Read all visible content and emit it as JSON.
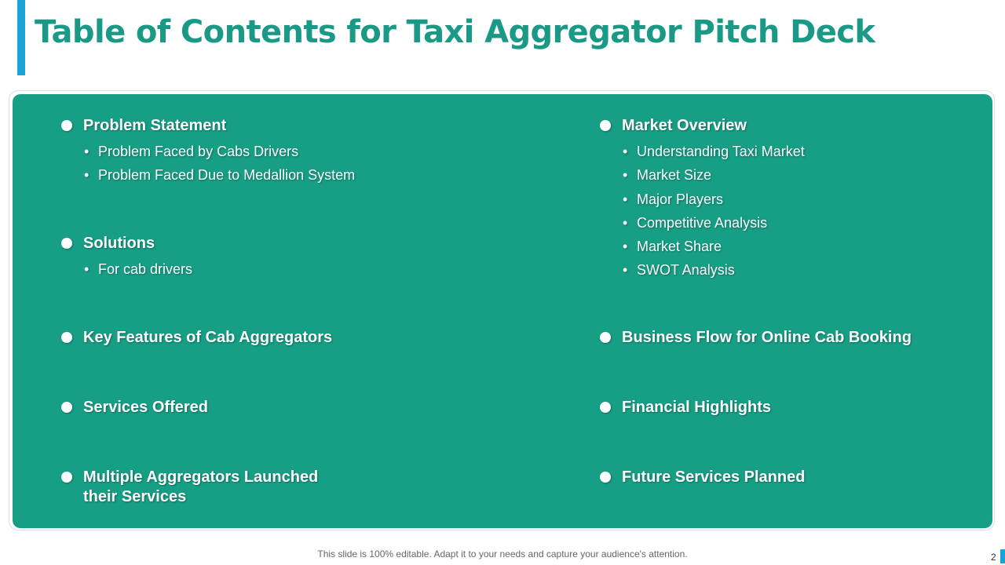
{
  "title": "Table of Contents for Taxi Aggregator Pitch Deck",
  "left_column": [
    {
      "heading": "Problem Statement",
      "items": [
        "Problem Faced by Cabs Drivers",
        "Problem Faced Due to Medallion System"
      ]
    },
    {
      "heading": "Solutions",
      "items": [
        "For cab drivers"
      ]
    },
    {
      "heading": "Key Features of Cab Aggregators"
    },
    {
      "heading": "Services Offered"
    },
    {
      "heading_line1": "Multiple Aggregators Launched",
      "heading_line2": "their Services"
    }
  ],
  "right_column": [
    {
      "heading": "Market Overview",
      "items": [
        "Understanding Taxi Market",
        "Market Size",
        "Major Players",
        "Competitive Analysis",
        "Market Share",
        "SWOT Analysis"
      ]
    },
    {
      "heading": "Business Flow for Online Cab Booking"
    },
    {
      "heading": "Financial Highlights"
    },
    {
      "heading": "Future Services Planned"
    }
  ],
  "footer": {
    "note": "This slide is 100% editable. Adapt it to your needs and capture your audience's attention.",
    "page_number": "2"
  },
  "colors": {
    "accent_teal": "#179f86",
    "title_teal": "#1a9a86",
    "accent_blue": "#1aa3d9"
  }
}
